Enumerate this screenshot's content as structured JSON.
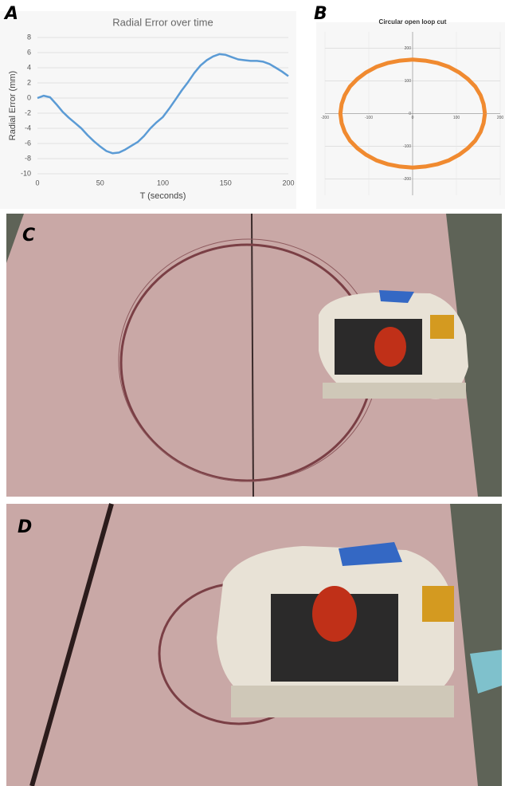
{
  "panels": [
    "A",
    "B",
    "C",
    "D"
  ],
  "chart_data": [
    {
      "type": "line",
      "title": "Radial Error over time",
      "x_label": "T (seconds)",
      "y_label": "Radial Error (mm)",
      "x": [
        0,
        5,
        10,
        15,
        20,
        25,
        30,
        35,
        40,
        45,
        50,
        55,
        60,
        65,
        70,
        75,
        80,
        85,
        90,
        95,
        100,
        105,
        110,
        115,
        120,
        125,
        130,
        135,
        140,
        145,
        150,
        155,
        160,
        165,
        170,
        175,
        180,
        185,
        190,
        195,
        200
      ],
      "values": [
        0,
        0.3,
        0.1,
        -0.8,
        -1.8,
        -2.6,
        -3.3,
        -4.0,
        -4.9,
        -5.7,
        -6.4,
        -7.0,
        -7.3,
        -7.2,
        -6.8,
        -6.3,
        -5.8,
        -5.0,
        -4.0,
        -3.2,
        -2.5,
        -1.4,
        -0.2,
        1.0,
        2.1,
        3.3,
        4.3,
        5.0,
        5.5,
        5.8,
        5.7,
        5.4,
        5.1,
        5.0,
        4.9,
        4.9,
        4.8,
        4.5,
        4.0,
        3.5,
        2.9
      ],
      "color": "#5b9bd5",
      "xlim": [
        0,
        200
      ],
      "xticks": [
        0,
        50,
        100,
        150,
        200
      ],
      "ylim": [
        -10,
        8
      ],
      "yticks": [
        8,
        6,
        4,
        2,
        0,
        -2,
        -4,
        -6,
        -8,
        -10
      ],
      "grid": true
    },
    {
      "type": "line",
      "title": "Circular open loop cut",
      "x": [
        165,
        162,
        155,
        143,
        126,
        106,
        83,
        56,
        29,
        0,
        -29,
        -56,
        -83,
        -106,
        -126,
        -143,
        -155,
        -162,
        -165,
        -162,
        -155,
        -143,
        -126,
        -106,
        -83,
        -56,
        -29,
        0,
        29,
        56,
        83,
        106,
        126,
        143,
        155,
        162,
        165
      ],
      "values": [
        0,
        29,
        56,
        83,
        106,
        126,
        143,
        155,
        162,
        165,
        162,
        155,
        143,
        126,
        106,
        83,
        56,
        29,
        0,
        -29,
        -56,
        -83,
        -106,
        -126,
        -143,
        -155,
        -162,
        -165,
        -162,
        -155,
        -143,
        -126,
        -106,
        -83,
        -56,
        -29,
        0
      ],
      "color": "#f08a30",
      "xlim": [
        -200,
        200
      ],
      "xticks": [
        -200,
        -100,
        0,
        100,
        200
      ],
      "ylim": [
        -250,
        250
      ],
      "yticks": [
        -200,
        -100,
        0,
        100,
        200
      ],
      "grid": true
    }
  ]
}
